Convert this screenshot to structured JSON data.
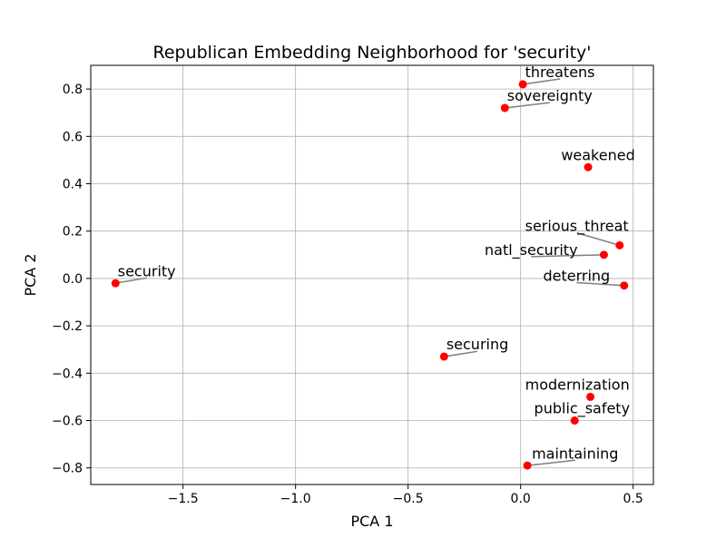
{
  "chart_data": {
    "type": "scatter",
    "title": "Republican Embedding Neighborhood for 'security'",
    "xlabel": "PCA 1",
    "ylabel": "PCA 2",
    "xlim": [
      -1.91,
      0.59
    ],
    "ylim": [
      -0.87,
      0.9
    ],
    "xticks": [
      -1.5,
      -1.0,
      -0.5,
      0.0,
      0.5
    ],
    "xtick_labels": [
      "−1.5",
      "−1.0",
      "−0.5",
      "0.0",
      "0.5"
    ],
    "yticks": [
      -0.8,
      -0.6,
      -0.4,
      -0.2,
      0.0,
      0.2,
      0.4,
      0.6,
      0.8
    ],
    "ytick_labels": [
      "−0.8",
      "−0.6",
      "−0.4",
      "−0.2",
      "0.0",
      "0.2",
      "0.4",
      "0.6",
      "0.8"
    ],
    "grid": true,
    "point_color": "#ff0000",
    "leader_color": "#7f7f7f",
    "points": [
      {
        "label": "security",
        "x": -1.8,
        "y": -0.02,
        "lx": -1.79,
        "ly": 0.01,
        "anchor": "start"
      },
      {
        "label": "threatens",
        "x": 0.01,
        "y": 0.82,
        "lx": 0.02,
        "ly": 0.85,
        "anchor": "start"
      },
      {
        "label": "sovereignty",
        "x": -0.07,
        "y": 0.72,
        "lx": -0.06,
        "ly": 0.75,
        "anchor": "start"
      },
      {
        "label": "weakened",
        "x": 0.3,
        "y": 0.47,
        "lx": 0.18,
        "ly": 0.5,
        "anchor": "start"
      },
      {
        "label": "serious_threat",
        "x": 0.44,
        "y": 0.14,
        "lx": 0.02,
        "ly": 0.2,
        "anchor": "start"
      },
      {
        "label": "natl_security",
        "x": 0.37,
        "y": 0.1,
        "lx": -0.16,
        "ly": 0.1,
        "anchor": "start"
      },
      {
        "label": "deterring",
        "x": 0.46,
        "y": -0.03,
        "lx": 0.1,
        "ly": -0.01,
        "anchor": "start"
      },
      {
        "label": "securing",
        "x": -0.34,
        "y": -0.33,
        "lx": -0.33,
        "ly": -0.3,
        "anchor": "start"
      },
      {
        "label": "modernization",
        "x": 0.31,
        "y": -0.5,
        "lx": 0.02,
        "ly": -0.47,
        "anchor": "start"
      },
      {
        "label": "public_safety",
        "x": 0.24,
        "y": -0.6,
        "lx": 0.06,
        "ly": -0.57,
        "anchor": "start"
      },
      {
        "label": "maintaining",
        "x": 0.03,
        "y": -0.79,
        "lx": 0.05,
        "ly": -0.76,
        "anchor": "start"
      }
    ]
  }
}
